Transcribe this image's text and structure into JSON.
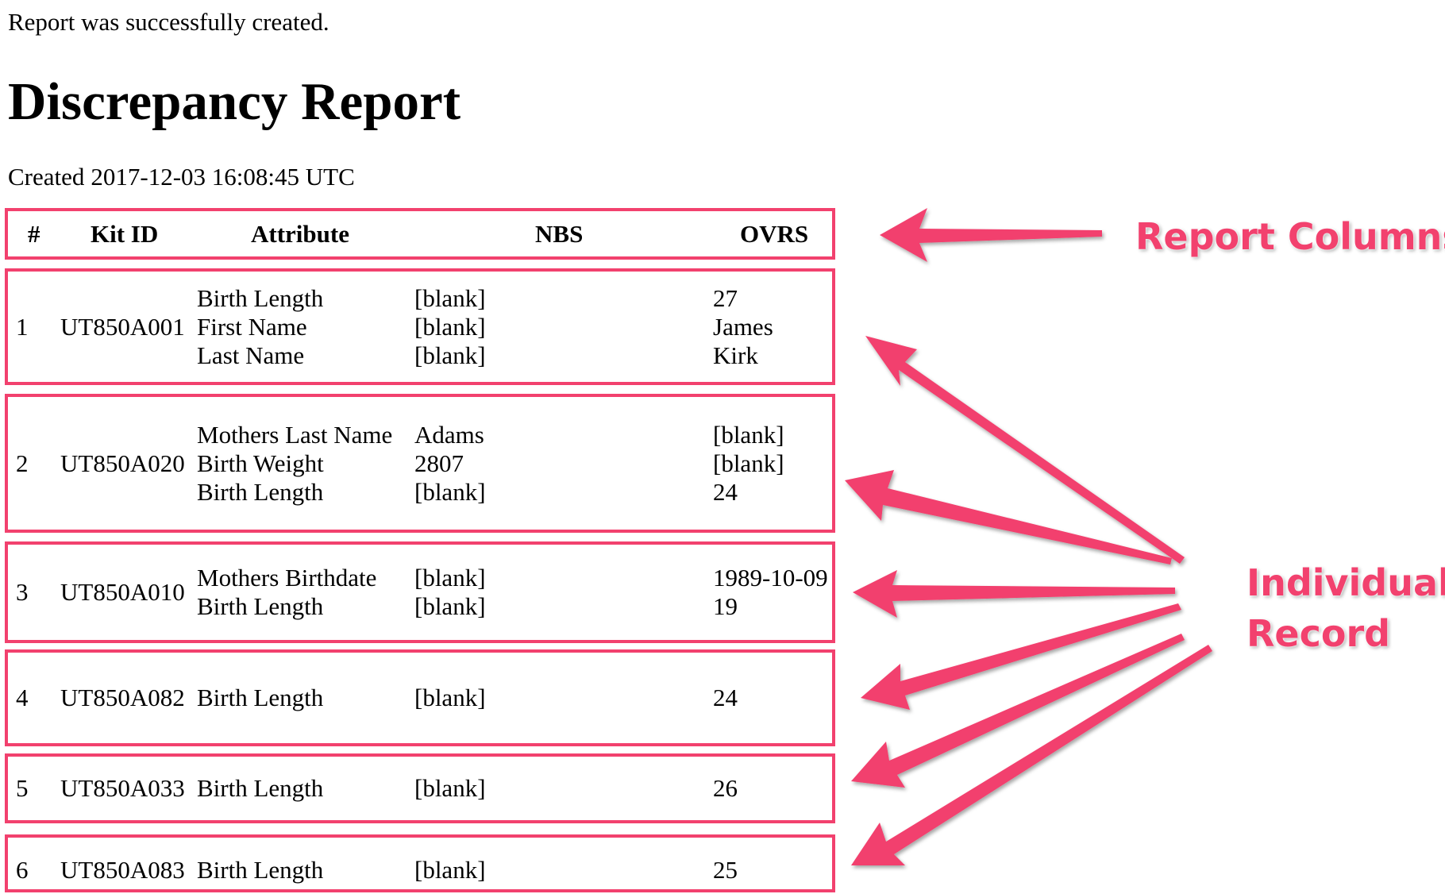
{
  "flash_message": "Report was successfully created.",
  "title": "Discrepancy Report",
  "created": {
    "label": "Created",
    "timestamp": "2017-12-03 16:08:45 UTC"
  },
  "table": {
    "headers": {
      "num": "#",
      "kit_id": "Kit ID",
      "attribute": "Attribute",
      "nbs": "NBS",
      "ovrs": "OVRS"
    },
    "records": [
      {
        "num": "1",
        "kit_id": "UT850A001",
        "attributes": [
          "Birth Length",
          "First Name",
          "Last Name"
        ],
        "nbs": [
          "[blank]",
          "[blank]",
          "[blank]"
        ],
        "ovrs": [
          "27",
          "James",
          "Kirk"
        ]
      },
      {
        "num": "2",
        "kit_id": "UT850A020",
        "attributes": [
          "Mothers Last Name",
          "Birth Weight",
          "Birth Length"
        ],
        "nbs": [
          "Adams",
          "2807",
          "[blank]"
        ],
        "ovrs": [
          "[blank]",
          "[blank]",
          "24"
        ]
      },
      {
        "num": "3",
        "kit_id": "UT850A010",
        "attributes": [
          "Mothers Birthdate",
          "Birth Length"
        ],
        "nbs": [
          "[blank]",
          "[blank]"
        ],
        "ovrs": [
          "1989-10-09",
          "19"
        ]
      },
      {
        "num": "4",
        "kit_id": "UT850A082",
        "attributes": [
          "Birth Length"
        ],
        "nbs": [
          "[blank]"
        ],
        "ovrs": [
          "24"
        ]
      },
      {
        "num": "5",
        "kit_id": "UT850A033",
        "attributes": [
          "Birth Length"
        ],
        "nbs": [
          "[blank]"
        ],
        "ovrs": [
          "26"
        ]
      },
      {
        "num": "6",
        "kit_id": "UT850A083",
        "attributes": [
          "Birth Length"
        ],
        "nbs": [
          "[blank]"
        ],
        "ovrs": [
          "25"
        ]
      }
    ]
  },
  "annotations": {
    "report_columns": "Report Columns",
    "individual_record": [
      "Individual",
      "Record"
    ]
  },
  "colors": {
    "annotation": "#f2416e",
    "text": "#000000",
    "background": "#ffffff"
  }
}
